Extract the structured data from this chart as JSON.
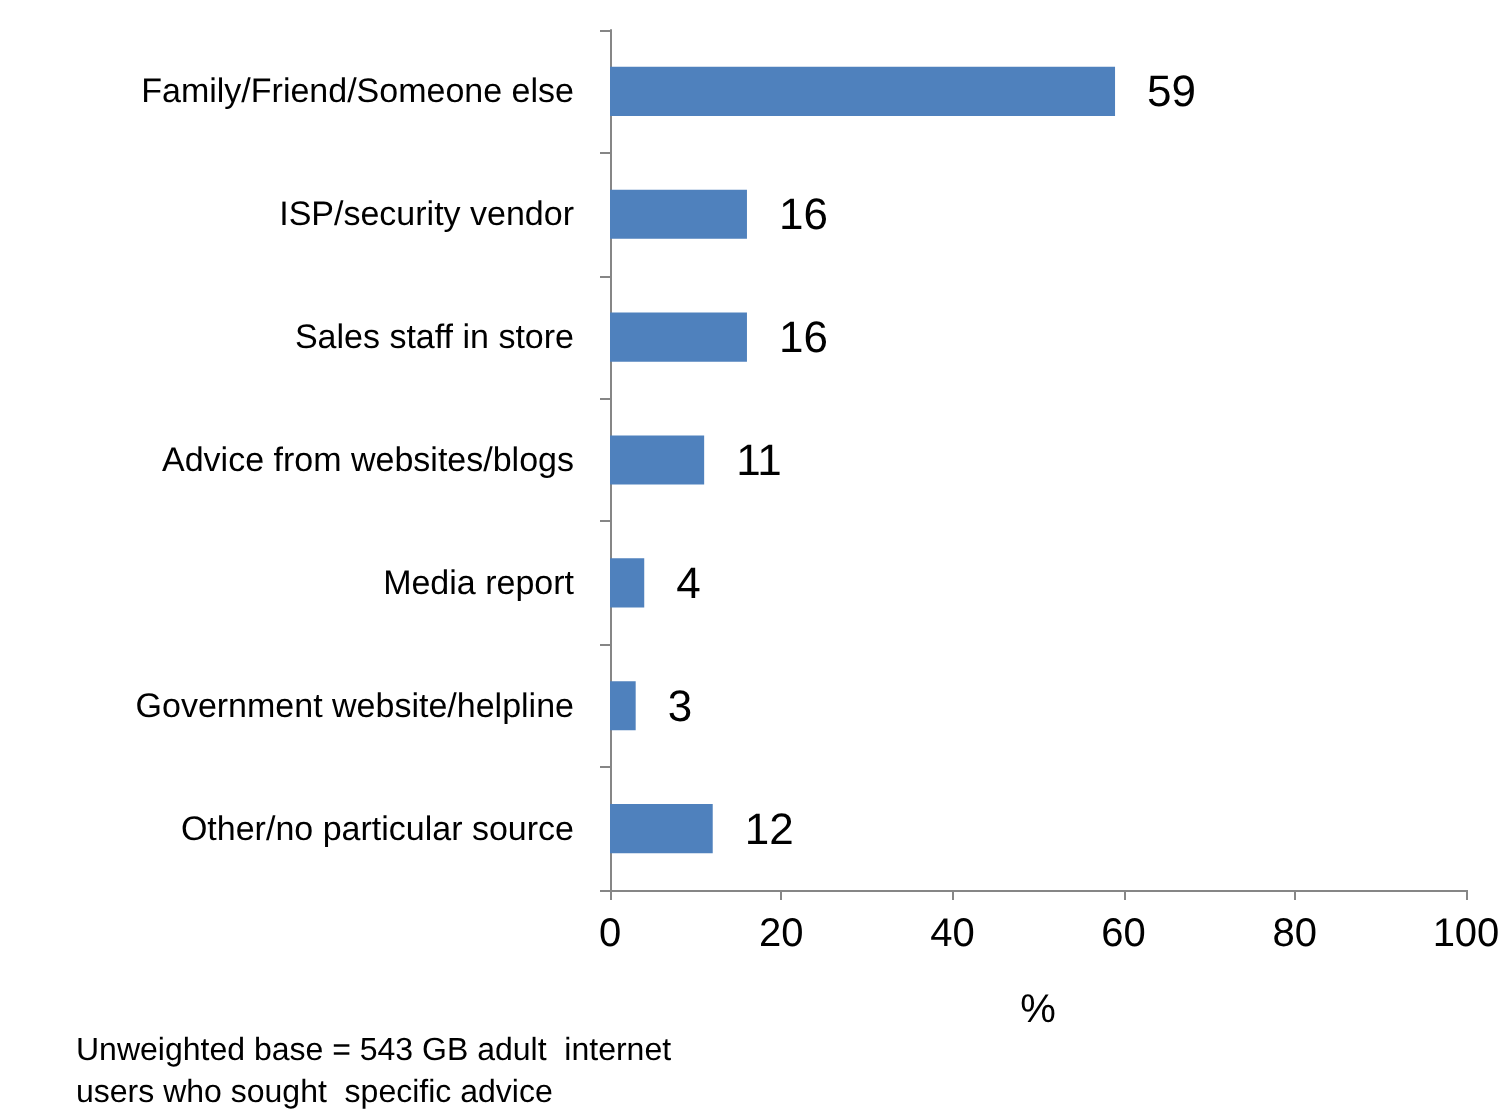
{
  "chart_data": {
    "type": "bar",
    "orientation": "horizontal",
    "categories": [
      "Family/Friend/Someone else",
      "ISP/security vendor",
      "Sales staff in store",
      "Advice from websites/blogs",
      "Media report",
      "Government website/helpline",
      "Other/no particular source"
    ],
    "values": [
      59,
      16,
      16,
      11,
      4,
      3,
      12
    ],
    "color": "#4f81bd",
    "xlim": [
      0,
      100
    ],
    "xticks": [
      0,
      20,
      40,
      60,
      80,
      100
    ],
    "xlabel": "%",
    "data_labels": true,
    "annotations": [
      "Unweighted base = 543 GB adult  internet\nusers who sought  specific advice"
    ]
  }
}
